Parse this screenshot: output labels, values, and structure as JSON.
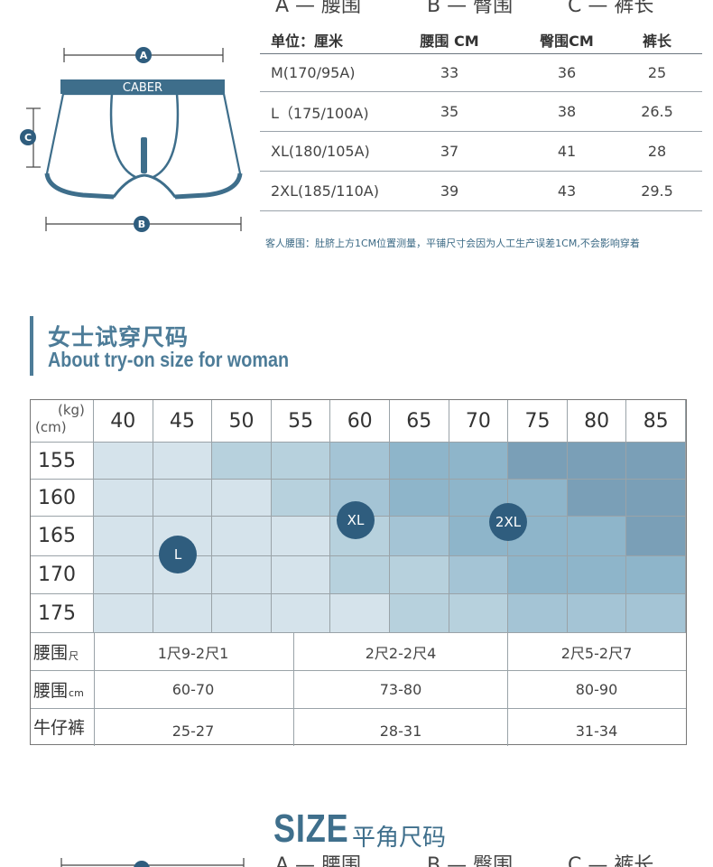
{
  "legend_labels": {
    "a": "A — 腰围",
    "b": "B — 臀围",
    "c": "C — 裤长"
  },
  "diagram": {
    "brand": "CABER",
    "marker_a": "A",
    "marker_b": "B",
    "marker_c": "C"
  },
  "size_table": {
    "headers": [
      "单位：厘米",
      "腰围 CM",
      "臀围CM",
      "裤长"
    ],
    "rows": [
      [
        "M(170/95A)",
        "33",
        "36",
        "25"
      ],
      [
        "L（175/100A)",
        "35",
        "38",
        "26.5"
      ],
      [
        "XL(180/105A)",
        "37",
        "41",
        "28"
      ],
      [
        "2XL(185/110A)",
        "39",
        "43",
        "29.5"
      ]
    ]
  },
  "note": "客人腰围：肚脐上方1CM位置测量，平铺尺寸会因为人工生产误差1CM,不会影响穿着",
  "section": {
    "title": "女士试穿尺码",
    "subtitle": "About try-on size for woman"
  },
  "fit_chart": {
    "corner_kg": "(kg)",
    "corner_cm": "(cm)",
    "weights": [
      "40",
      "45",
      "50",
      "55",
      "60",
      "65",
      "70",
      "75",
      "80",
      "85"
    ],
    "heights": [
      "155",
      "160",
      "165",
      "170",
      "175"
    ],
    "shade_levels": [
      [
        0,
        0,
        1,
        1,
        2,
        3,
        3,
        4,
        4,
        4
      ],
      [
        0,
        0,
        0,
        1,
        2,
        3,
        3,
        3,
        4,
        4
      ],
      [
        0,
        0,
        0,
        0,
        1,
        2,
        3,
        3,
        3,
        4
      ],
      [
        0,
        0,
        0,
        0,
        1,
        1,
        2,
        3,
        3,
        3
      ],
      [
        0,
        0,
        0,
        0,
        0,
        1,
        1,
        2,
        2,
        2
      ]
    ],
    "shade_colors": [
      "#d5e3eb",
      "#b7d1dd",
      "#a4c4d5",
      "#8eb5ca",
      "#7a9fb7"
    ],
    "badges": [
      "L",
      "XL",
      "2XL"
    ],
    "waist_chi_label": "腰围",
    "waist_chi_unit": "尺",
    "waist_chi": [
      "1尺9-2尺1",
      "2尺2-2尺4",
      "2尺5-2尺7"
    ],
    "waist_cm_label": "腰围",
    "waist_cm_unit": "cm",
    "waist_cm": [
      "60-70",
      "73-80",
      "80-90"
    ],
    "jeans_label": "牛仔裤",
    "jeans": [
      "25-27",
      "28-31",
      "31-34"
    ]
  },
  "bottom_heading": {
    "size": "SIZE",
    "subtitle": "平角尺码"
  },
  "colors": {
    "accent": "#4d7c98",
    "badge": "#2f5d7e"
  }
}
